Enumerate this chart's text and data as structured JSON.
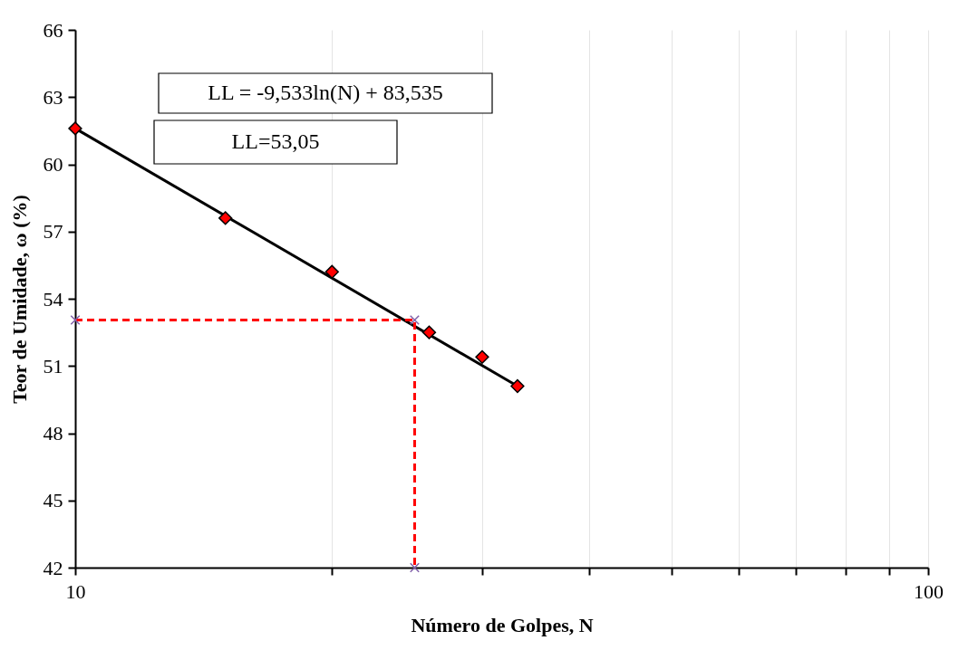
{
  "chart_data": {
    "type": "scatter",
    "xlabel": "Número de Golpes, N",
    "ylabel": "Teor de Umidade, ω (%)",
    "log": "x",
    "grid": "x",
    "xlim": [
      10,
      100
    ],
    "ylim": [
      42,
      66
    ],
    "xticks": [
      10,
      {
        "value": 20,
        "label": null
      },
      {
        "value": 30,
        "label": null
      },
      {
        "value": 40,
        "label": null
      },
      {
        "value": 50,
        "label": null
      },
      {
        "value": 60,
        "label": null
      },
      {
        "value": 70,
        "label": null
      },
      {
        "value": 80,
        "label": null
      },
      {
        "value": 90,
        "label": null
      },
      100
    ],
    "yticks": [
      42,
      45,
      48,
      51,
      54,
      57,
      60,
      63,
      66
    ],
    "annotations": [
      "LL = -9,533ln(N) + 83,535",
      "LL=53,05"
    ],
    "series": [
      {
        "type": "line",
        "color": "#000000",
        "marker": "none",
        "line_style": "solid",
        "x": [
          10,
          33
        ],
        "values": [
          61.6,
          50.1
        ]
      },
      {
        "type": "scatter",
        "color": "#ff0000",
        "marker": "diamond",
        "x": [
          10,
          15,
          20,
          26,
          30,
          33
        ],
        "values": [
          61.6,
          57.6,
          55.2,
          52.5,
          51.4,
          50.1
        ]
      },
      {
        "type": "line",
        "color": "#ff0000",
        "marker": "none",
        "line_style": "dashed",
        "x": [
          10,
          25,
          25
        ],
        "values": [
          53.05,
          53.05,
          42
        ]
      },
      {
        "type": "scatter",
        "color": "#7f5fa8",
        "marker": "cross",
        "x": [
          10,
          25,
          25
        ],
        "values": [
          53.05,
          53.05,
          42
        ]
      }
    ]
  }
}
